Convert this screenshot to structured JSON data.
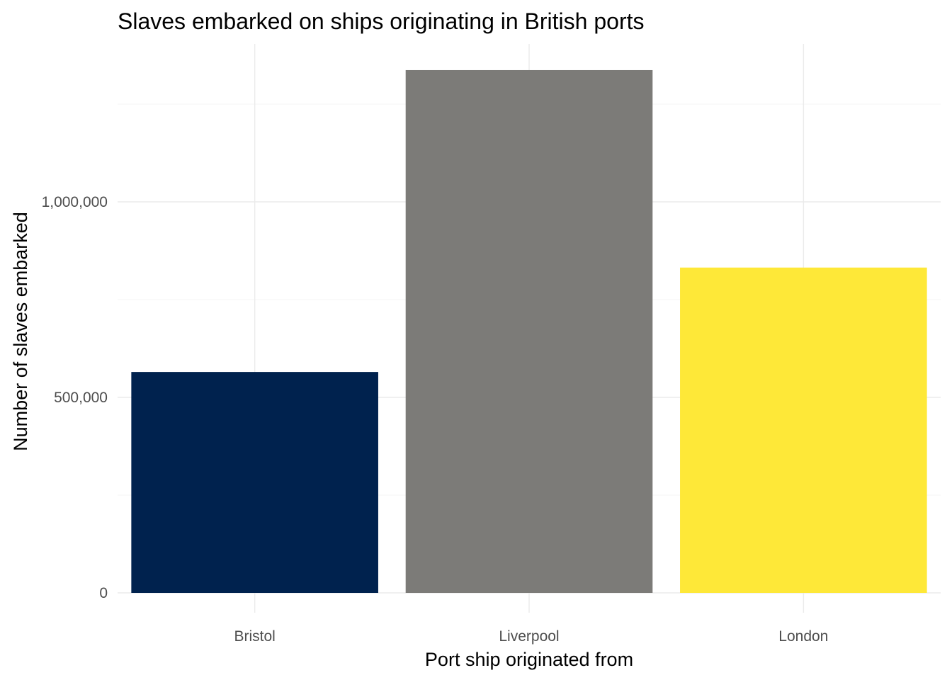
{
  "chart_data": {
    "type": "bar",
    "title": "Slaves embarked on ships originating in British ports",
    "xlabel": "Port ship originated from",
    "ylabel": "Number of slaves embarked",
    "categories": [
      "Bristol",
      "Liverpool",
      "London"
    ],
    "values": [
      565000,
      1337000,
      832000
    ],
    "colors": [
      "#00224e",
      "#7c7b78",
      "#fee838"
    ],
    "ylim": [
      0,
      1400000
    ],
    "yticks": [
      0,
      500000,
      1000000
    ],
    "ytick_labels": [
      "0",
      "500,000",
      "1,000,000"
    ],
    "grid": true,
    "legend": "none"
  }
}
